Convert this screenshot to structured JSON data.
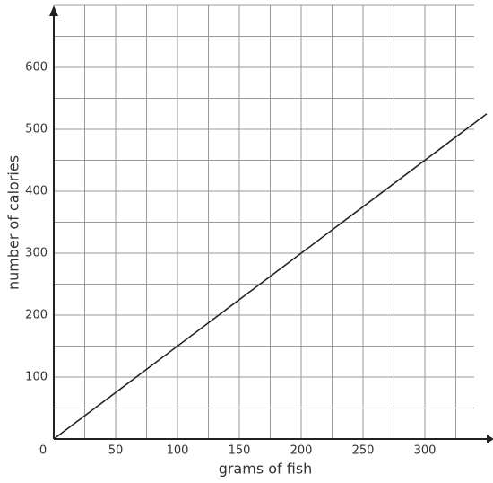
{
  "chart_data": {
    "type": "line",
    "x_label": "grams of fish",
    "y_label": "number of calories",
    "x": [
      0,
      350
    ],
    "series": [
      {
        "color": "#222222",
        "values": [
          0,
          525
        ]
      }
    ],
    "xlim": [
      0,
      350
    ],
    "ylim": [
      0,
      700
    ],
    "xticks": [
      0,
      50,
      100,
      150,
      200,
      250,
      300
    ],
    "yticks": [
      100,
      200,
      300,
      400,
      500,
      600
    ],
    "xgrid": [
      25,
      50,
      75,
      100,
      125,
      150,
      175,
      200,
      225,
      250,
      275,
      300,
      325
    ],
    "ygrid": [
      50,
      100,
      150,
      200,
      250,
      300,
      350,
      400,
      450,
      500,
      550,
      600,
      650,
      700
    ],
    "grid": true
  }
}
